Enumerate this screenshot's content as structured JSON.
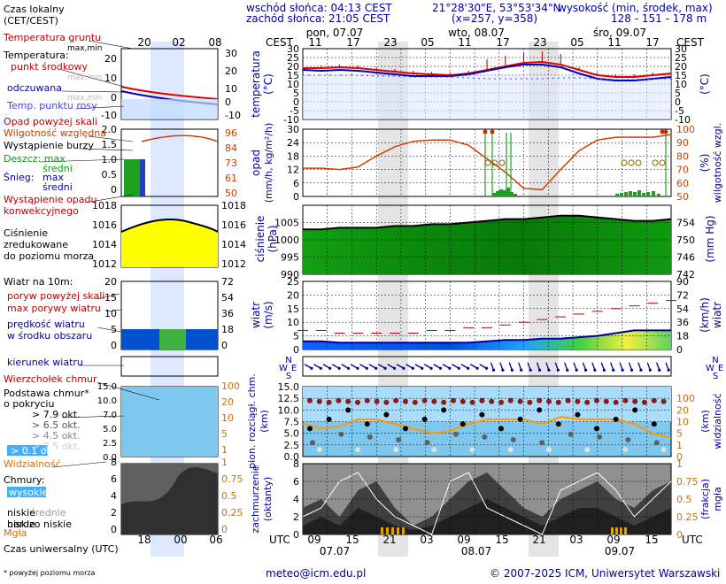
{
  "header": {
    "sunrise": "wschód słońca: 04:13 CEST",
    "sunset": "zachód słońca: 21:05 CEST",
    "coords": "21°28'30\"E, 53°53'34\"N",
    "grid": "(x=257, y=358)",
    "elev_label": "wysokość (min, środek, max)",
    "elev_values": "128 - 151 - 178 m"
  },
  "footer": {
    "email": "meteo@icm.edu.pl",
    "copyright": "© 2007-2025 ICM, Uniwersytet Warszawski",
    "note": "* powyżej poziomu morza"
  },
  "timeline": {
    "cest_label": "CEST",
    "utc_label": "UTC",
    "cest_ticks": [
      "11",
      "17",
      "23",
      "05",
      "11",
      "17",
      "23",
      "05",
      "11",
      "17"
    ],
    "utc_ticks": [
      "09",
      "15",
      "21",
      "03",
      "09",
      "15",
      "21",
      "03",
      "09",
      "15"
    ],
    "days": [
      "pon, 07.07",
      "wto, 08.07",
      "śro, 09.07"
    ],
    "dates_utc": [
      "07.07",
      "08.07",
      "09.07"
    ],
    "legend_local_ticks": [
      "20",
      "02",
      "08"
    ],
    "legend_utc_ticks": [
      "18",
      "00",
      "06"
    ]
  },
  "legend": {
    "local_time": "Czas lokalny",
    "local_time2": "(CET/CEST)",
    "utc_time": "Czas uniwersalny (UTC)",
    "soil_temp": "Temperatura gruntu",
    "maxmin": "max,min",
    "temperature": "Temperatura:",
    "mid_point": "punkt środkowy",
    "felt": "odczuwana",
    "dew": "Temp. punktu rosy",
    "precip_above": "Opad powyżej skali",
    "rh": "Wilgotność względna",
    "storm": "Wystąpienie burzy",
    "rain": "Deszcz: max",
    "avg": "średni",
    "snow": "Śnieg:",
    "max": "max",
    "conv": "Wystąpienie opadu",
    "conv2": "konwekcyjnego",
    "pressure1": "Ciśnienie",
    "pressure2": "zredukowane",
    "pressure3": "do poziomu morza",
    "wind10": "Wiatr na 10m:",
    "gust_above": "poryw powyżej skali",
    "gust_max": "max porywy wiatru",
    "wind_avg": "prędkość wiatru",
    "wind_avg2": "w środku obszaru",
    "wind_dir": "kierunek wiatru",
    "cloud_top": "Wierzchołek chmur",
    "cloud_base": "Podstawa chmur*",
    "cloud_base2": "o pokryciu",
    "okt79": "> 7.9 okt.",
    "okt65": "> 6.5 okt.",
    "okt45": "> 4.5 okt.",
    "okt25": "> 2.5 okt.",
    "okt01": "> 0.1 okt.",
    "visibility": "Widzialność",
    "clouds": "Chmury:",
    "high": "wysokie",
    "middle": "średnie",
    "low": "niskie",
    "verylow": "bardzo niskie",
    "fog": "Mgła"
  },
  "axes": {
    "temp_left": "temperatura\n(°C)",
    "temp_left1": "temperatura",
    "temp_left2": "(°C)",
    "temp_right": "(°C)",
    "precip_left1": "opad",
    "precip_left2": "(mm/h, kg/m²/h)",
    "precip_right1": "(%)",
    "precip_right2": "wilgotność wzgl.",
    "press_left": "ciśnienie",
    "press_left2": "(hPa)",
    "press_right": "(mm Hg)",
    "wind_left1": "wiatr",
    "wind_left2": "(m/s)",
    "wind_right1": "(km/h)",
    "wind_right2": "wiatr",
    "cloud_left1": "pion. rozciągł. chm.",
    "cloud_left2": "(km)",
    "cloud_right1": "(km)",
    "cloud_right2": "widzialność",
    "cover_left1": "zachmurzenie",
    "cover_left2": "(oktanty)",
    "cover_right1": "(frakcja)",
    "cover_right2": "mgła"
  },
  "chart_data": [
    {
      "type": "line",
      "title": "temperatura",
      "ylabel": "(°C)",
      "ylim": [
        -10,
        30
      ],
      "yticks": [
        "-10",
        "-5",
        "0",
        "5",
        "10",
        "15",
        "20",
        "25",
        "30"
      ],
      "x_hours": [
        0,
        3,
        6,
        9,
        12,
        15,
        18,
        21,
        24,
        27,
        30,
        33,
        36,
        39,
        42,
        45,
        48,
        51,
        54,
        57,
        60
      ],
      "series": [
        {
          "name": "punkt środkowy",
          "color": "#e00000",
          "values": [
            19,
            19,
            19.5,
            19,
            18,
            17,
            16,
            15.5,
            15,
            16,
            18,
            20,
            22,
            22.5,
            21,
            18,
            15,
            14,
            14,
            15,
            16
          ]
        },
        {
          "name": "odczuwana",
          "color": "#0000c0",
          "values": [
            18,
            17.5,
            18,
            17.5,
            16.5,
            15.5,
            14.5,
            14.5,
            14.5,
            15.5,
            17.5,
            19.5,
            21,
            21,
            19.5,
            16,
            13,
            12,
            12,
            13,
            14
          ]
        },
        {
          "name": "Temp. punktu rosy",
          "color": "#4040ff",
          "values": [
            15,
            15,
            15,
            15,
            14.5,
            14.5,
            14,
            14,
            14,
            13.5,
            13,
            13,
            13,
            13,
            13.5,
            13.5,
            13,
            12.5,
            12.5,
            13,
            13
          ]
        }
      ]
    },
    {
      "type": "bar",
      "title": "opad",
      "ylabel": "(mm/h, kg/m²/h)",
      "ylim": [
        0,
        30
      ],
      "yticks": [
        "0",
        "6",
        "12",
        "18",
        "24",
        "30"
      ],
      "yticks_right": [
        "50",
        "60",
        "70",
        "80",
        "90",
        "100"
      ],
      "series": [
        {
          "name": "Wilgotność względna",
          "color": "#d04000",
          "values": [
            71,
            71,
            70,
            72,
            80,
            87,
            91,
            92,
            92,
            88,
            78,
            68,
            56,
            55,
            70,
            84,
            92,
            94,
            94,
            94,
            96
          ]
        }
      ]
    },
    {
      "type": "area",
      "title": "ciśnienie",
      "ylabel": "(hPa)",
      "ylim": [
        990,
        1010
      ],
      "yticks": [
        "990",
        "995",
        "1000",
        "1005"
      ],
      "yticks_right": [
        "742",
        "746",
        "750",
        "754"
      ],
      "series": [
        {
          "name": "Ciśnienie",
          "color": "#000000",
          "values": [
            1003,
            1003,
            1003.5,
            1003.5,
            1003.5,
            1004,
            1004,
            1004.5,
            1004.5,
            1005,
            1005.5,
            1006,
            1006,
            1006.5,
            1007,
            1007,
            1006.5,
            1006,
            1005.5,
            1005.5,
            1006
          ]
        }
      ]
    },
    {
      "type": "area",
      "title": "wiatr",
      "ylabel": "(m/s)",
      "ylim": [
        0,
        25
      ],
      "yticks": [
        "0",
        "5",
        "10",
        "15",
        "20",
        "25"
      ],
      "yticks_right": [
        "0",
        "18",
        "36",
        "54",
        "72",
        "90"
      ],
      "series": [
        {
          "name": "prędkość wiatru",
          "color": "#0000a0",
          "values": [
            3,
            3,
            2.5,
            2.5,
            2.5,
            2.5,
            2.5,
            2.5,
            2.5,
            2.5,
            3,
            3.5,
            3.5,
            4,
            4,
            4.5,
            5,
            6,
            7,
            7,
            7
          ]
        },
        {
          "name": "max porywy wiatru",
          "color": "#c00000",
          "values": [
            7,
            7,
            6,
            6,
            6,
            6,
            6,
            7,
            7,
            8,
            8,
            9,
            10,
            11,
            12,
            13,
            14,
            15,
            16,
            17,
            18
          ]
        }
      ]
    },
    {
      "type": "scatter",
      "title": "pion. rozciągł. chm.",
      "ylabel": "(km)",
      "ylim": [
        0,
        15
      ],
      "yticks": [
        "0.0",
        "2.5",
        "5.0",
        "7.5",
        "10.0",
        "12.5",
        "15.0"
      ],
      "yticks_right": [
        "0",
        "1",
        "5",
        "10",
        "20",
        "100"
      ],
      "series": [
        {
          "name": "Widzialność",
          "color": "#ff9900",
          "values": [
            7,
            6,
            6.5,
            8,
            8,
            7,
            6,
            5,
            5.5,
            7,
            8,
            8,
            8,
            7,
            8.5,
            8,
            8,
            8,
            7,
            5,
            4
          ]
        }
      ]
    },
    {
      "type": "area",
      "title": "zachmurzenie",
      "ylabel": "(oktanty)",
      "ylim": [
        0,
        8
      ],
      "yticks": [
        "0",
        "2",
        "4",
        "6",
        "8"
      ],
      "yticks_right": [
        "0",
        "0.25",
        "0.5",
        "0.75",
        "1"
      ],
      "series": [
        {
          "name": "wysokie",
          "color": "#ffffff",
          "values": [
            2,
            3,
            6,
            7,
            4,
            2,
            1,
            0,
            6,
            7,
            3,
            2,
            1,
            0,
            5,
            6,
            7,
            5,
            2,
            4,
            6
          ]
        }
      ]
    }
  ]
}
